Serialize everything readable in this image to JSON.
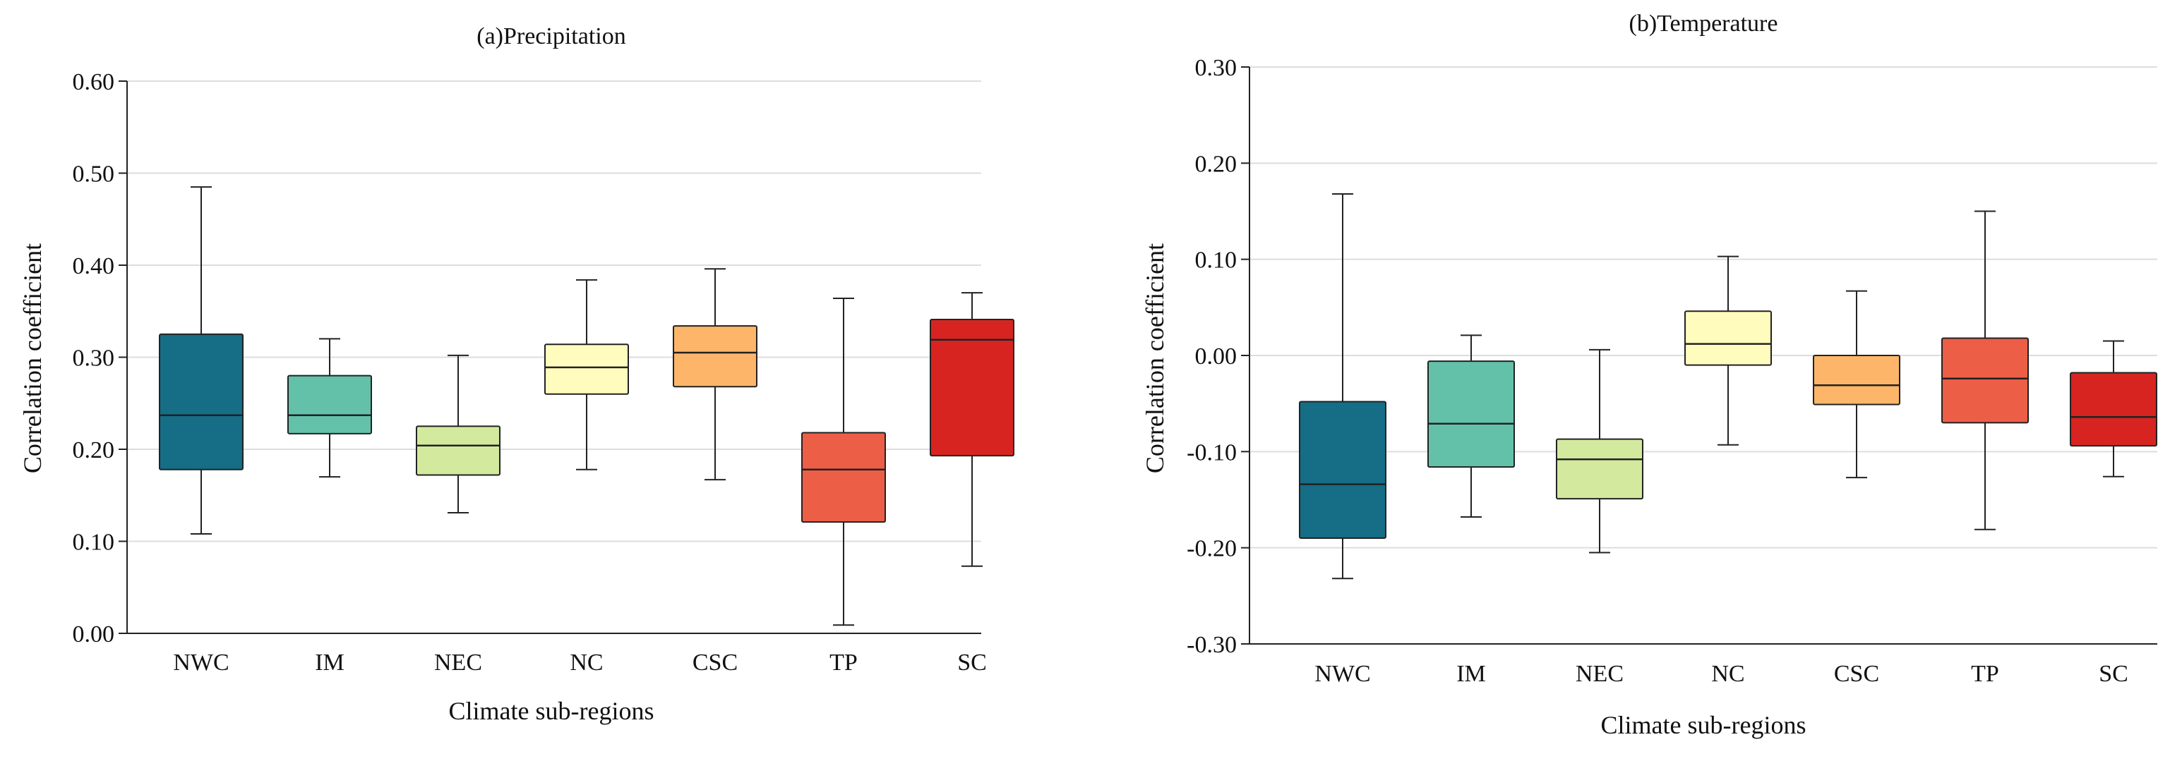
{
  "colors": {
    "NWC": "#156d86",
    "IM": "#63c1a9",
    "NEC": "#d3ea9e",
    "NC": "#fffcbd",
    "CSC": "#fdb669",
    "TP": "#ec5e46",
    "SC": "#d72421",
    "grid": "#dddddd",
    "axis": "#222222"
  },
  "chart_data": [
    {
      "type": "box",
      "title": "(a)Precipitation",
      "xlabel": "Climate sub-regions",
      "ylabel": "Correlation coefficient",
      "ylim": [
        0.0,
        0.6
      ],
      "yticks": [
        0.0,
        0.1,
        0.2,
        0.3,
        0.4,
        0.5,
        0.6
      ],
      "ytick_labels": [
        "0.00",
        "0.10",
        "0.20",
        "0.30",
        "0.40",
        "0.50",
        "0.60"
      ],
      "grid": true,
      "categories": [
        "NWC",
        "IM",
        "NEC",
        "NC",
        "CSC",
        "TP",
        "SC"
      ],
      "boxes": [
        {
          "name": "NWC",
          "min": 0.108,
          "q1": 0.178,
          "median": 0.237,
          "q3": 0.325,
          "max": 0.485
        },
        {
          "name": "IM",
          "min": 0.17,
          "q1": 0.217,
          "median": 0.237,
          "q3": 0.28,
          "max": 0.32
        },
        {
          "name": "NEC",
          "min": 0.131,
          "q1": 0.172,
          "median": 0.204,
          "q3": 0.225,
          "max": 0.302
        },
        {
          "name": "NC",
          "min": 0.178,
          "q1": 0.26,
          "median": 0.289,
          "q3": 0.314,
          "max": 0.384
        },
        {
          "name": "CSC",
          "min": 0.167,
          "q1": 0.268,
          "median": 0.305,
          "q3": 0.334,
          "max": 0.396
        },
        {
          "name": "TP",
          "min": 0.009,
          "q1": 0.121,
          "median": 0.178,
          "q3": 0.218,
          "max": 0.364
        },
        {
          "name": "SC",
          "min": 0.073,
          "q1": 0.193,
          "median": 0.319,
          "q3": 0.341,
          "max": 0.37
        }
      ]
    },
    {
      "type": "box",
      "title": "(b)Temperature",
      "xlabel": "Climate sub-regions",
      "ylabel": "Correlation coefficient",
      "ylim": [
        -0.3,
        0.3
      ],
      "yticks": [
        -0.3,
        -0.2,
        -0.1,
        0.0,
        0.1,
        0.2,
        0.3
      ],
      "ytick_labels": [
        "-0.30",
        "-0.20",
        "-0.10",
        "0.00",
        "0.10",
        "0.20",
        "0.30"
      ],
      "grid": true,
      "categories": [
        "NWC",
        "IM",
        "NEC",
        "NC",
        "CSC",
        "TP",
        "SC"
      ],
      "boxes": [
        {
          "name": "NWC",
          "min": -0.232,
          "q1": -0.19,
          "median": -0.134,
          "q3": -0.048,
          "max": 0.168
        },
        {
          "name": "IM",
          "min": -0.168,
          "q1": -0.116,
          "median": -0.071,
          "q3": -0.006,
          "max": 0.021
        },
        {
          "name": "NEC",
          "min": -0.205,
          "q1": -0.149,
          "median": -0.108,
          "q3": -0.087,
          "max": 0.006
        },
        {
          "name": "NC",
          "min": -0.093,
          "q1": -0.01,
          "median": 0.012,
          "q3": 0.046,
          "max": 0.103
        },
        {
          "name": "CSC",
          "min": -0.127,
          "q1": -0.051,
          "median": -0.031,
          "q3": 0.0,
          "max": 0.067
        },
        {
          "name": "TP",
          "min": -0.181,
          "q1": -0.07,
          "median": -0.024,
          "q3": 0.018,
          "max": 0.15
        },
        {
          "name": "SC",
          "min": -0.126,
          "q1": -0.094,
          "median": -0.064,
          "q3": -0.018,
          "max": 0.015
        }
      ]
    }
  ]
}
